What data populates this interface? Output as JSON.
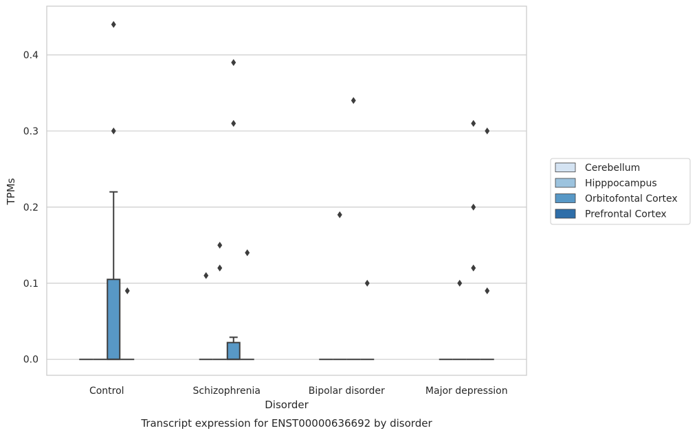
{
  "chart_data": {
    "type": "box",
    "caption": "Transcript expression for ENST00000636692 by disorder",
    "xlabel": "Disorder",
    "ylabel": "TPMs",
    "ylim": [
      -0.021,
      0.464
    ],
    "yticks": [
      0.0,
      0.1,
      0.2,
      0.3,
      0.4
    ],
    "ytick_labels": [
      "0.0",
      "0.1",
      "0.2",
      "0.3",
      "0.4"
    ],
    "grid": "horizontal",
    "legend_position": "right",
    "categories": [
      "Control",
      "Schizophrenia",
      "Bipolar disorder",
      "Major depression"
    ],
    "series": [
      {
        "name": "Cerebellum",
        "color": "#d4e3f2",
        "boxes": [
          {
            "q1": 0,
            "median": 0,
            "q3": 0,
            "whisker_low": 0,
            "whisker_high": 0,
            "outliers": []
          },
          {
            "q1": 0,
            "median": 0,
            "q3": 0,
            "whisker_low": 0,
            "whisker_high": 0,
            "outliers": [
              0.11
            ]
          },
          {
            "q1": 0,
            "median": 0,
            "q3": 0,
            "whisker_low": 0,
            "whisker_high": 0,
            "outliers": []
          },
          {
            "q1": 0,
            "median": 0,
            "q3": 0,
            "whisker_low": 0,
            "whisker_high": 0,
            "outliers": []
          }
        ]
      },
      {
        "name": "Hipppocampus",
        "color": "#9cc3de",
        "boxes": [
          {
            "q1": 0,
            "median": 0,
            "q3": 0,
            "whisker_low": 0,
            "whisker_high": 0,
            "outliers": []
          },
          {
            "q1": 0,
            "median": 0,
            "q3": 0,
            "whisker_low": 0,
            "whisker_high": 0,
            "outliers": [
              0.12,
              0.15
            ]
          },
          {
            "q1": 0,
            "median": 0,
            "q3": 0,
            "whisker_low": 0,
            "whisker_high": 0,
            "outliers": [
              0.19
            ]
          },
          {
            "q1": 0,
            "median": 0,
            "q3": 0,
            "whisker_low": 0,
            "whisker_high": 0,
            "outliers": [
              0.1
            ]
          }
        ]
      },
      {
        "name": "Orbitofontal Cortex",
        "color": "#5898c6",
        "boxes": [
          {
            "q1": 0,
            "median": 0,
            "q3": 0.105,
            "whisker_low": 0,
            "whisker_high": 0.22,
            "outliers": [
              0.3,
              0.44
            ]
          },
          {
            "q1": 0,
            "median": 0,
            "q3": 0.022,
            "whisker_low": 0,
            "whisker_high": 0.029,
            "outliers": [
              0.31,
              0.39
            ]
          },
          {
            "q1": 0,
            "median": 0,
            "q3": 0,
            "whisker_low": 0,
            "whisker_high": 0,
            "outliers": [
              0.34
            ]
          },
          {
            "q1": 0,
            "median": 0,
            "q3": 0,
            "whisker_low": 0,
            "whisker_high": 0,
            "outliers": [
              0.12,
              0.2,
              0.31
            ]
          }
        ]
      },
      {
        "name": "Prefrontal Cortex",
        "color": "#2e6ea9",
        "boxes": [
          {
            "q1": 0,
            "median": 0,
            "q3": 0,
            "whisker_low": 0,
            "whisker_high": 0,
            "outliers": [
              0.09
            ]
          },
          {
            "q1": 0,
            "median": 0,
            "q3": 0,
            "whisker_low": 0,
            "whisker_high": 0,
            "outliers": [
              0.14
            ]
          },
          {
            "q1": 0,
            "median": 0,
            "q3": 0,
            "whisker_low": 0,
            "whisker_high": 0,
            "outliers": [
              0.1
            ]
          },
          {
            "q1": 0,
            "median": 0,
            "q3": 0,
            "whisker_low": 0,
            "whisker_high": 0,
            "outliers": [
              0.09,
              0.3
            ]
          }
        ]
      }
    ]
  }
}
